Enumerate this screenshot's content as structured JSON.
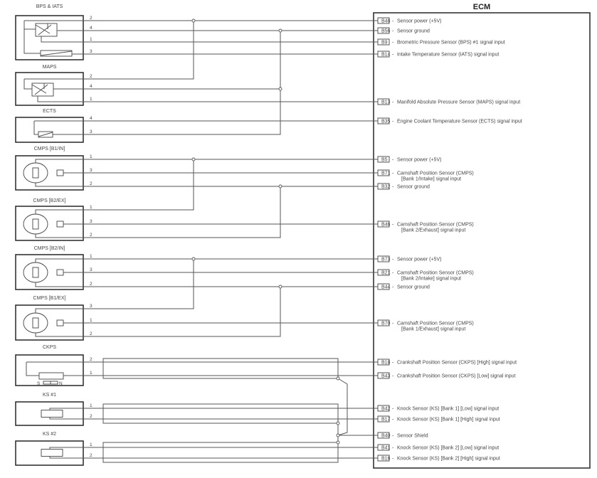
{
  "ecm": {
    "title": "ECM",
    "terminals": [
      {
        "id": "B48",
        "desc": [
          "Sensor power (+5V)"
        ]
      },
      {
        "id": "B56",
        "desc": [
          "Sensor ground"
        ]
      },
      {
        "id": "B9",
        "desc": [
          "Brometric Pressure Sensor (BPS) #1 signal input"
        ]
      },
      {
        "id": "B14",
        "desc": [
          "Intake Temperature Sensor (IATS) signal input"
        ]
      },
      {
        "id": "B13",
        "desc": [
          "Manifold Absolute Pressure Sensor (MAPS) signal input"
        ]
      },
      {
        "id": "B35",
        "desc": [
          "Engine Coolant Temperature Sensor (ECTS) signal input"
        ]
      },
      {
        "id": "B5",
        "desc": [
          "Sensor power (+5V)"
        ]
      },
      {
        "id": "B71",
        "desc": [
          "Camshaft Position Sensor (CMPS)",
          "[Bank 1/Intake] signal input"
        ]
      },
      {
        "id": "B32",
        "desc": [
          "Sensor ground"
        ]
      },
      {
        "id": "B46",
        "desc": [
          "Camshaft Position Sensor (CMPS)",
          "[Bank 2/Exhaust] signal input"
        ]
      },
      {
        "id": "B73",
        "desc": [
          "Sensor power (+5V)"
        ]
      },
      {
        "id": "B21",
        "desc": [
          "Camshaft Position Sensor (CMPS)",
          "[Bank 2/Intake] signal input"
        ]
      },
      {
        "id": "B44",
        "desc": [
          "Sensor ground"
        ]
      },
      {
        "id": "B70",
        "desc": [
          "Camshaft Position Sensor (CMPS)",
          "[Bank 1/Exhaust] signal input"
        ]
      },
      {
        "id": "B18",
        "desc": [
          "Crankshaft Position Sensor (CKPS) [High] signal input"
        ]
      },
      {
        "id": "B43",
        "desc": [
          "Crankshaft Position Sensor (CKPS) [Low] signal input"
        ]
      },
      {
        "id": "B42",
        "desc": [
          "Knock Sensor (KS) [Bank 1] [Low] signal input"
        ]
      },
      {
        "id": "B17",
        "desc": [
          "Knock Sensor (KS) [Bank 1] [High] signal input"
        ]
      },
      {
        "id": "B40",
        "desc": [
          "Sensor Shield"
        ]
      },
      {
        "id": "B41",
        "desc": [
          "Knock Sensor (KS) [Bank 2] [Low] signal input"
        ]
      },
      {
        "id": "B16",
        "desc": [
          "Knock Sensor (KS) [Bank 2] [High] signal input"
        ]
      }
    ]
  },
  "sensors": [
    {
      "label": "BPS & IATS",
      "type": "bps-iats",
      "pins": [
        "2",
        "4",
        "1",
        "3"
      ]
    },
    {
      "label": "MAPS",
      "type": "maps",
      "pins": [
        "2",
        "4",
        "1"
      ]
    },
    {
      "label": "ECTS",
      "type": "ects",
      "pins": [
        "4",
        "3"
      ]
    },
    {
      "label": "CMPS [B1/IN]",
      "type": "cmps",
      "pins": [
        "1",
        "3",
        "2"
      ]
    },
    {
      "label": "CMPS [B2/EX]",
      "type": "cmps",
      "pins": [
        "1",
        "3",
        "2"
      ]
    },
    {
      "label": "CMPS [B2/IN]",
      "type": "cmps",
      "pins": [
        "1",
        "3",
        "2"
      ]
    },
    {
      "label": "CMPS [B1/EX]",
      "type": "cmps",
      "pins": [
        "3",
        "1",
        "2"
      ]
    },
    {
      "label": "CKPS",
      "type": "ckps",
      "pins": [
        "2",
        "1"
      ],
      "pole_labels": [
        "S",
        "N"
      ]
    },
    {
      "label": "KS #1",
      "type": "ks",
      "pins": [
        "1",
        "2"
      ]
    },
    {
      "label": "KS #2",
      "type": "ks",
      "pins": [
        "1",
        "2"
      ]
    }
  ],
  "colors": {
    "wire": "#555555",
    "border": "#333333",
    "text": "#444444"
  }
}
